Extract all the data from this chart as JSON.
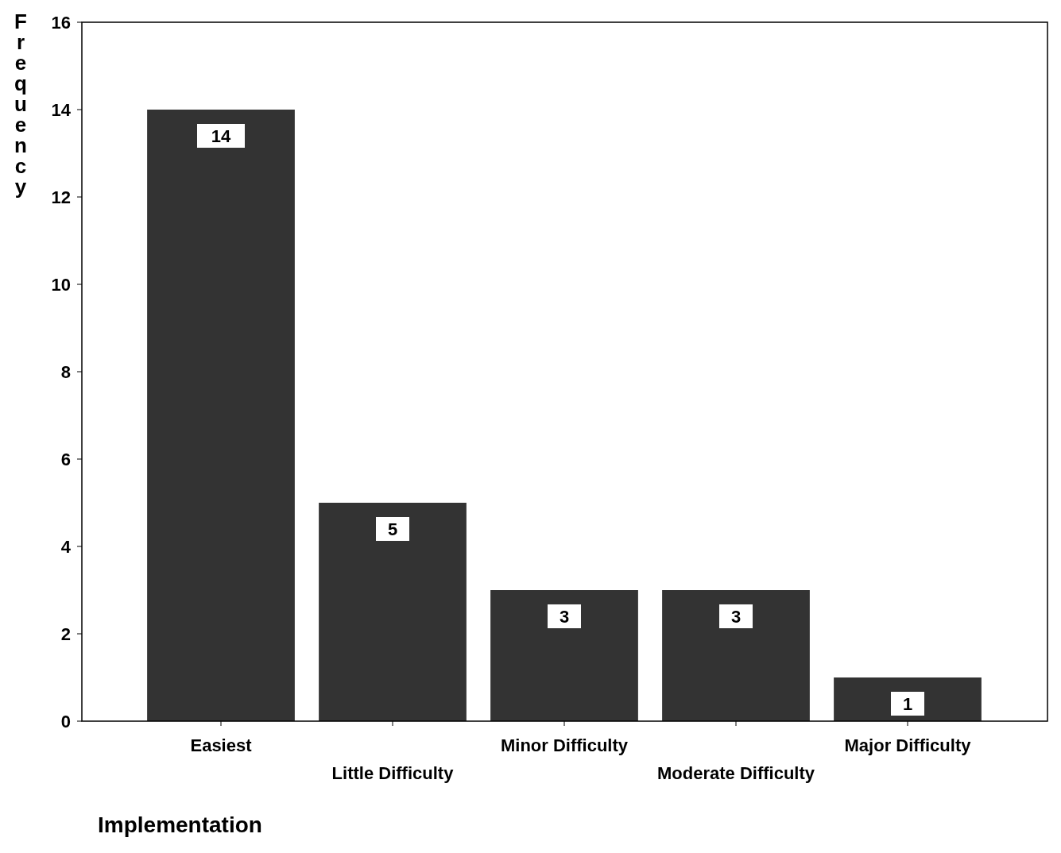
{
  "chart_data": {
    "type": "bar",
    "xlabel": "Implementation",
    "ylabel": "Frequency",
    "categories": [
      "Easiest",
      "Little Difficulty",
      "Minor Difficulty",
      "Moderate Difficulty",
      "Major Difficulty"
    ],
    "values": [
      14,
      5,
      3,
      3,
      1
    ],
    "color": "#333333",
    "ylim": [
      0,
      16
    ],
    "yticks": [
      0,
      2,
      4,
      6,
      8,
      10,
      12,
      14,
      16
    ],
    "data_labels": true
  }
}
